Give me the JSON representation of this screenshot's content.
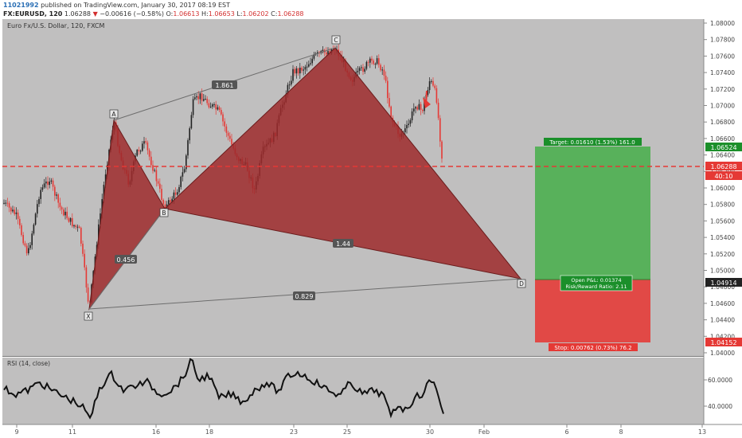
{
  "header": {
    "user_id": "11021992",
    "published": "published on TradingView.com, January 30, 2017 08:19 EST",
    "symbol": "FX:EURUSD, 120",
    "last": "1.06288",
    "arrow": "▼",
    "change": "−0.00616 (−0.58%)",
    "open_label": "O:",
    "open": "1.06613",
    "high_label": "H:",
    "high": "1.06653",
    "low_label": "L:",
    "low": "1.06202",
    "close_label": "C:",
    "close": "1.06288"
  },
  "main_chart": {
    "legend": "Euro Fx/U.S. Dollar, 120, FXCM",
    "price_axis": [
      "1.08000",
      "1.07800",
      "1.07600",
      "1.07400",
      "1.07200",
      "1.07000",
      "1.06800",
      "1.06600",
      "1.06400",
      "1.06200",
      "1.06000",
      "1.05800",
      "1.05600",
      "1.05400",
      "1.05200",
      "1.05000",
      "1.04800",
      "1.04600",
      "1.04400",
      "1.04200",
      "1.04000"
    ],
    "price_tags": {
      "target": "1.06524",
      "current": "1.06288",
      "countdown": "40:10",
      "entry": "1.04914",
      "stop": "1.04152"
    },
    "pattern_points": {
      "x": "X",
      "a": "A",
      "b": "B",
      "c": "C",
      "d": "D"
    },
    "ratios": {
      "xa_ac": "1.861",
      "xb": "0.456",
      "bd": "1.44",
      "xd": "0.829"
    },
    "position": {
      "target_label": "Target: 0.01610 (1.53%) 161.0",
      "stop_label": "Stop: 0.00762 (0.73%) 76.2",
      "pnl": "Open P&L: 0.01374",
      "rr": "Risk/Reward Ratio: 2.11"
    },
    "colors": {
      "pattern_fill": "#9e2a2b",
      "target_zone": "#4caf50",
      "stop_zone": "#e53935",
      "current_line": "#e53935",
      "bull_candle": "#222222",
      "bear_candle": "#e53935"
    }
  },
  "rsi": {
    "legend": "RSI (14, close)",
    "axis": [
      "60.0000",
      "40.0000"
    ]
  },
  "time_axis": [
    "9",
    "11",
    "16",
    "18",
    "23",
    "25",
    "30",
    "Feb",
    "6",
    "8",
    "13"
  ]
}
